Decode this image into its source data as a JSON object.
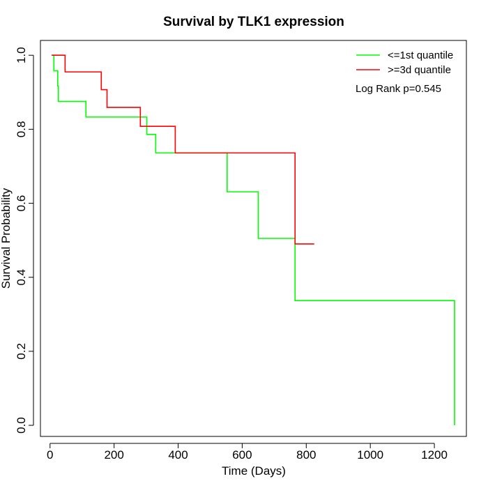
{
  "chart_data": {
    "type": "line",
    "subtype": "kaplan-meier-step",
    "title": "Survival by TLK1 expression",
    "xlabel": "Time (Days)",
    "ylabel": "Survival Probability",
    "xlim": [
      -30,
      1300
    ],
    "ylim": [
      -0.03,
      1.04
    ],
    "xticks": [
      0,
      200,
      400,
      600,
      800,
      1000,
      1200
    ],
    "yticks": [
      0.0,
      0.2,
      0.4,
      0.6,
      0.8,
      1.0
    ],
    "xtick_labels": [
      "0",
      "200",
      "400",
      "600",
      "800",
      "1000",
      "1200"
    ],
    "ytick_labels": [
      "0.0",
      "0.2",
      "0.4",
      "0.6",
      "0.8",
      "1.0"
    ],
    "grid": false,
    "legend_position": "top-right",
    "annotation": "Log Rank p=0.545",
    "series": [
      {
        "name": "<=1st quantile",
        "color": "#00ff00",
        "x": [
          5,
          12,
          24,
          26,
          112,
          302,
          330,
          391,
          553,
          650,
          765,
          1263
        ],
        "y": [
          1.0,
          0.958,
          0.917,
          0.875,
          0.833,
          0.786,
          0.736,
          0.736,
          0.631,
          0.505,
          0.337,
          0.0
        ]
      },
      {
        "name": ">=3d quantile",
        "color": "#ff0000",
        "x": [
          5,
          47,
          160,
          178,
          282,
          391,
          765,
          825
        ],
        "y": [
          1.0,
          0.955,
          0.907,
          0.859,
          0.808,
          0.736,
          0.49,
          0.49
        ]
      }
    ]
  }
}
